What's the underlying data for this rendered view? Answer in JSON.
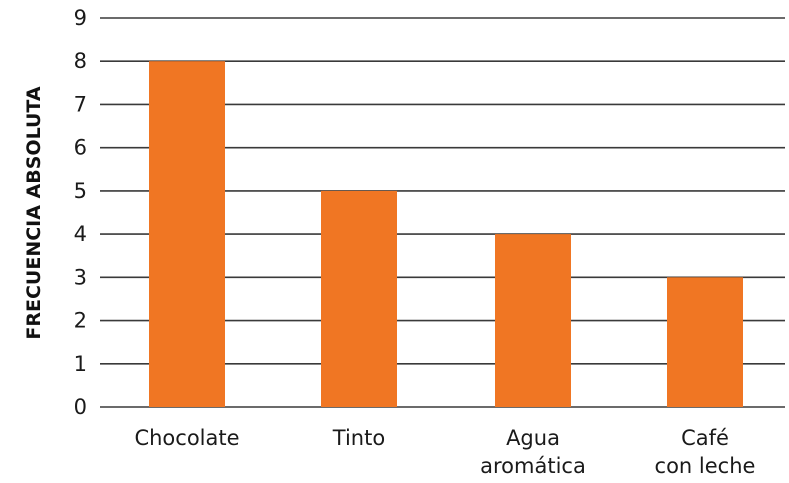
{
  "chart_data": {
    "type": "bar",
    "title": "",
    "xlabel": "",
    "ylabel": "FRECUENCIA ABSOLUTA",
    "categories": [
      [
        "Chocolate"
      ],
      [
        "Tinto"
      ],
      [
        "Agua",
        "aromática"
      ],
      [
        "Café",
        "con leche"
      ]
    ],
    "values": [
      8,
      5,
      4,
      3
    ],
    "ylim": [
      0,
      9
    ],
    "yticks": [
      0,
      1,
      2,
      3,
      4,
      5,
      6,
      7,
      8,
      9
    ],
    "grid": true,
    "legend": "none",
    "colors": {
      "bar": "#f07623",
      "grid": "#3a3a3a",
      "text": "#1a1a1a"
    }
  }
}
